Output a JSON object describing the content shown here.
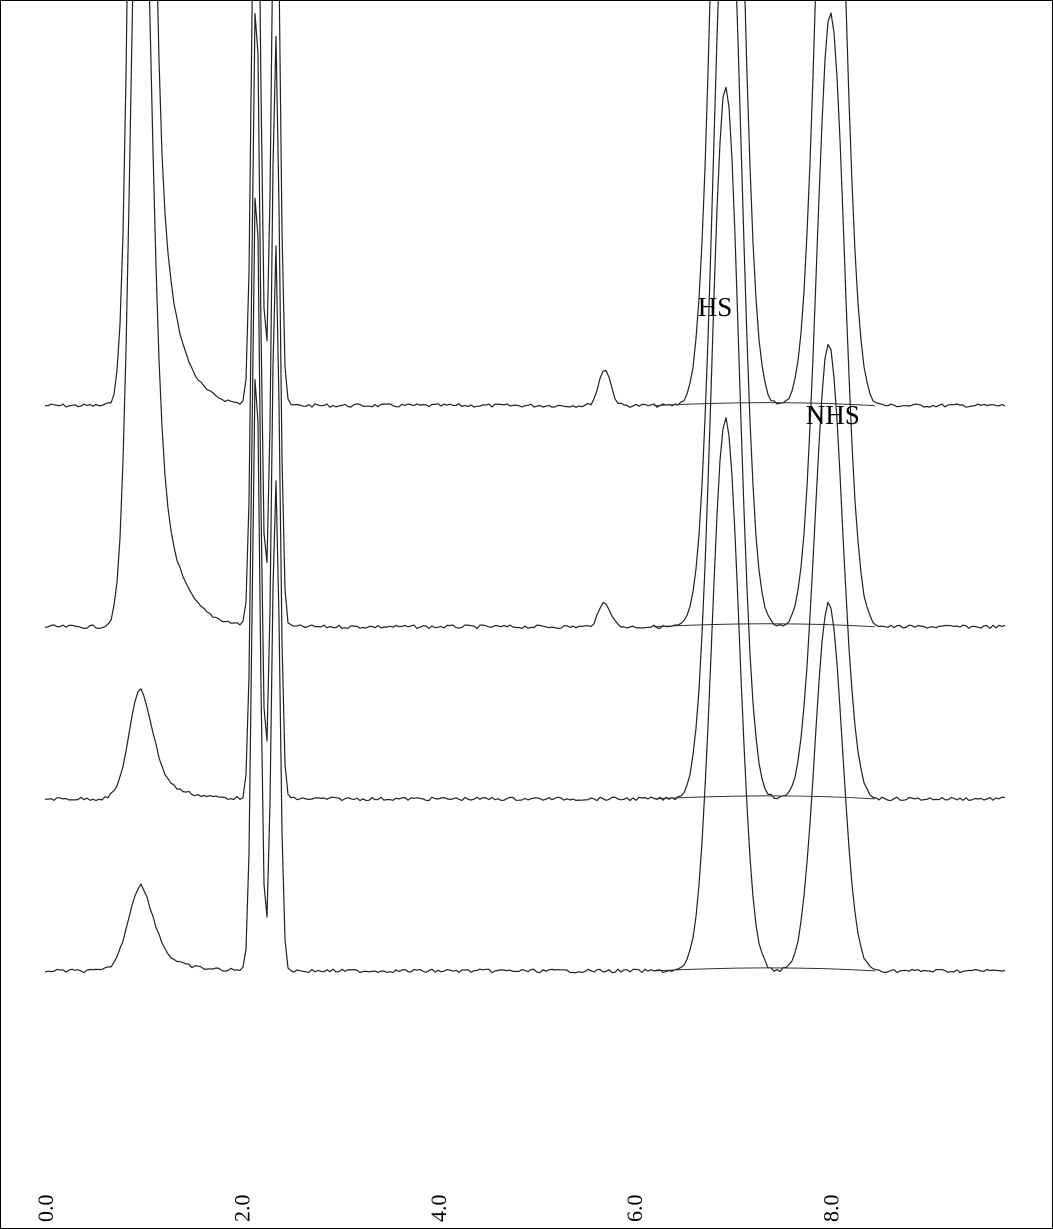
{
  "chart_data": {
    "type": "line",
    "title": "",
    "xlabel": "",
    "ylabel": "",
    "xlim": [
      0,
      10
    ],
    "x_ticks": [
      "0.0",
      "2.0",
      "4.0",
      "6.0",
      "8.0"
    ],
    "annotations": [
      {
        "text": "HS",
        "x": 6.8
      },
      {
        "text": "NHS",
        "x": 7.9
      }
    ],
    "series": [
      {
        "offset": 0.33,
        "peaks": [
          {
            "x": 0.98,
            "height": 1.18,
            "width": 0.09,
            "tail": 0.18
          },
          {
            "x": 2.15,
            "height": 0.55,
            "width": 0.04
          },
          {
            "x": 2.35,
            "height": 0.5,
            "width": 0.04
          },
          {
            "x": 5.7,
            "height": 0.03,
            "width": 0.06
          },
          {
            "x": 6.95,
            "height": 0.74,
            "width": 0.14
          },
          {
            "x": 8.0,
            "height": 0.61,
            "width": 0.14
          }
        ]
      },
      {
        "offset": 0.51,
        "peaks": [
          {
            "x": 0.98,
            "height": 0.75,
            "width": 0.1,
            "tail": 0.2
          },
          {
            "x": 2.15,
            "height": 0.52,
            "width": 0.04
          },
          {
            "x": 2.35,
            "height": 0.48,
            "width": 0.04
          },
          {
            "x": 5.7,
            "height": 0.02,
            "width": 0.06
          },
          {
            "x": 6.95,
            "height": 0.64,
            "width": 0.14
          },
          {
            "x": 8.0,
            "height": 0.5,
            "width": 0.14
          }
        ]
      },
      {
        "offset": 0.65,
        "peaks": [
          {
            "x": 0.98,
            "height": 0.09,
            "width": 0.12,
            "tail": 0.23
          },
          {
            "x": 2.15,
            "height": 0.51,
            "width": 0.04
          },
          {
            "x": 2.35,
            "height": 0.45,
            "width": 0.04
          },
          {
            "x": 6.93,
            "height": 0.58,
            "width": 0.14
          },
          {
            "x": 7.98,
            "height": 0.37,
            "width": 0.14
          }
        ]
      },
      {
        "offset": 0.79,
        "peaks": [
          {
            "x": 0.98,
            "height": 0.07,
            "width": 0.13,
            "tail": 0.24
          },
          {
            "x": 2.15,
            "height": 0.5,
            "width": 0.04
          },
          {
            "x": 2.35,
            "height": 0.4,
            "width": 0.04
          },
          {
            "x": 6.93,
            "height": 0.45,
            "width": 0.14
          },
          {
            "x": 7.98,
            "height": 0.3,
            "width": 0.14
          }
        ]
      }
    ]
  }
}
